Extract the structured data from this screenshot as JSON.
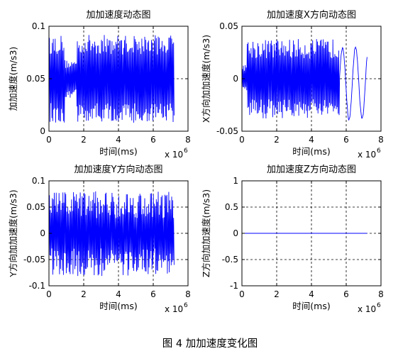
{
  "caption": "图 4  加加速度变化图",
  "colors": {
    "series": "#0000ff",
    "grid": "#000000",
    "background": "#ffffff"
  },
  "chart_data": [
    {
      "type": "line",
      "title": "加加速度动态图",
      "xlabel": "时间(ms)",
      "ylabel": "加加速度(m/s3)",
      "xlim": [
        0,
        8
      ],
      "ylim": [
        0,
        0.1
      ],
      "x_exponent_label": "x 10^6",
      "x_exponent_base": "x 10",
      "x_exponent_power": "6",
      "xticks": [
        0,
        2,
        4,
        6,
        8
      ],
      "yticks": [
        0,
        0.05,
        0.1
      ],
      "xtick_labels": [
        "0",
        "2",
        "4",
        "6",
        "8"
      ],
      "ytick_labels": [
        "0",
        "0.05",
        "0.1"
      ],
      "grid": true,
      "series": [
        {
          "x_range": [
            0,
            7.2
          ],
          "pattern": "rapid oscillation between about 0.005 and 0.095, dense and noisy",
          "sample_points": [
            [
              0.0,
              0.05
            ],
            [
              0.1,
              0.085
            ],
            [
              0.2,
              0.03
            ],
            [
              0.3,
              0.09
            ],
            [
              0.4,
              0.02
            ],
            [
              0.5,
              0.07
            ],
            [
              0.6,
              0.045
            ],
            [
              0.7,
              0.075
            ],
            [
              0.8,
              0.035
            ],
            [
              0.9,
              0.06
            ],
            [
              1.0,
              0.045
            ],
            [
              1.2,
              0.07
            ],
            [
              1.4,
              0.04
            ],
            [
              1.6,
              0.08
            ],
            [
              1.8,
              0.02
            ],
            [
              2.0,
              0.09
            ],
            [
              2.2,
              0.01
            ],
            [
              2.4,
              0.085
            ],
            [
              2.8,
              0.015
            ],
            [
              3.2,
              0.09
            ],
            [
              3.6,
              0.02
            ],
            [
              4.0,
              0.09
            ],
            [
              4.4,
              0.015
            ],
            [
              4.8,
              0.09
            ],
            [
              5.2,
              0.02
            ],
            [
              5.6,
              0.09
            ],
            [
              6.0,
              0.015
            ],
            [
              6.4,
              0.09
            ],
            [
              6.8,
              0.02
            ],
            [
              7.2,
              0.06
            ]
          ]
        }
      ]
    },
    {
      "type": "line",
      "title": "加加速度X方向动态图",
      "xlabel": "时间(ms)",
      "ylabel": "X方向加加速度(m/s3)",
      "xlim": [
        0,
        8
      ],
      "ylim": [
        -0.05,
        0.05
      ],
      "x_exponent_label": "x 10^6",
      "x_exponent_base": "x 10",
      "x_exponent_power": "6",
      "xticks": [
        0,
        2,
        4,
        6,
        8
      ],
      "yticks": [
        -0.05,
        0,
        0.05
      ],
      "xtick_labels": [
        "0",
        "2",
        "4",
        "6",
        "8"
      ],
      "ytick_labels": [
        "-0.05",
        "0",
        "0.05"
      ],
      "grid": true,
      "series": [
        {
          "x_range": [
            0,
            7.2
          ],
          "pattern": "oscillation between about -0.04 and 0.04; sparse cycles near 5.8-7.2",
          "sample_points": [
            [
              0.0,
              0.0
            ],
            [
              0.2,
              -0.02
            ],
            [
              0.4,
              -0.04
            ],
            [
              0.6,
              0.035
            ],
            [
              0.8,
              -0.03
            ],
            [
              1.0,
              0.03
            ],
            [
              1.4,
              -0.035
            ],
            [
              1.8,
              0.035
            ],
            [
              2.2,
              -0.04
            ],
            [
              2.6,
              0.035
            ],
            [
              3.0,
              -0.04
            ],
            [
              3.4,
              0.04
            ],
            [
              3.8,
              -0.04
            ],
            [
              4.2,
              0.04
            ],
            [
              4.6,
              -0.04
            ],
            [
              5.0,
              0.04
            ],
            [
              5.4,
              -0.035
            ],
            [
              5.6,
              0.01
            ],
            [
              5.8,
              -0.04
            ],
            [
              6.1,
              -0.01
            ],
            [
              6.3,
              -0.02
            ],
            [
              6.5,
              -0.04
            ],
            [
              6.8,
              0.04
            ],
            [
              7.2,
              -0.02
            ]
          ]
        }
      ]
    },
    {
      "type": "line",
      "title": "加加速度Y方向动态图",
      "xlabel": "时间(ms)",
      "ylabel": "Y方向加加速度(m/s3)",
      "xlim": [
        0,
        8
      ],
      "ylim": [
        -0.1,
        0.1
      ],
      "x_exponent_label": "x 10^6",
      "x_exponent_base": "x 10",
      "x_exponent_power": "6",
      "xticks": [
        0,
        2,
        4,
        6,
        8
      ],
      "yticks": [
        -0.1,
        -0.05,
        0,
        0.05,
        0.1
      ],
      "xtick_labels": [
        "0",
        "2",
        "4",
        "6",
        "8"
      ],
      "ytick_labels": [
        "-0.1",
        "-0.05",
        "0",
        "0.05",
        "0.1"
      ],
      "grid": true,
      "series": [
        {
          "x_range": [
            0,
            7.2
          ],
          "pattern": "rapid oscillation between about -0.08 and 0.09",
          "sample_points": [
            [
              0.0,
              0.0
            ],
            [
              0.1,
              0.08
            ],
            [
              0.2,
              -0.07
            ],
            [
              0.3,
              0.09
            ],
            [
              0.4,
              -0.08
            ],
            [
              0.6,
              0.06
            ],
            [
              0.8,
              -0.05
            ],
            [
              1.0,
              0.07
            ],
            [
              1.2,
              -0.05
            ],
            [
              1.6,
              0.06
            ],
            [
              2.0,
              -0.08
            ],
            [
              2.4,
              0.07
            ],
            [
              2.8,
              -0.07
            ],
            [
              3.2,
              0.08
            ],
            [
              3.6,
              -0.07
            ],
            [
              4.0,
              0.085
            ],
            [
              4.4,
              -0.08
            ],
            [
              4.8,
              0.08
            ],
            [
              5.2,
              -0.07
            ],
            [
              5.6,
              0.08
            ],
            [
              6.0,
              -0.075
            ],
            [
              6.4,
              0.08
            ],
            [
              6.8,
              -0.07
            ],
            [
              7.2,
              0.02
            ]
          ]
        }
      ]
    },
    {
      "type": "line",
      "title": "加加速度Z方向动态图",
      "xlabel": "时间(ms)",
      "ylabel": "Z方向加加速度(m/s3)",
      "xlim": [
        0,
        8
      ],
      "ylim": [
        -1,
        1
      ],
      "x_exponent_label": "x 10^6",
      "x_exponent_base": "x 10",
      "x_exponent_power": "6",
      "xticks": [
        0,
        2,
        4,
        6,
        8
      ],
      "yticks": [
        -1,
        -0.5,
        0,
        0.5,
        1
      ],
      "xtick_labels": [
        "0",
        "2",
        "4",
        "6",
        "8"
      ],
      "ytick_labels": [
        "-1",
        "-0.5",
        "0",
        "0.5",
        "1"
      ],
      "grid": true,
      "series": [
        {
          "x_range": [
            0,
            7.2
          ],
          "pattern": "constant zero",
          "sample_points": [
            [
              0.0,
              0.0
            ],
            [
              7.2,
              0.0
            ]
          ]
        }
      ]
    }
  ]
}
